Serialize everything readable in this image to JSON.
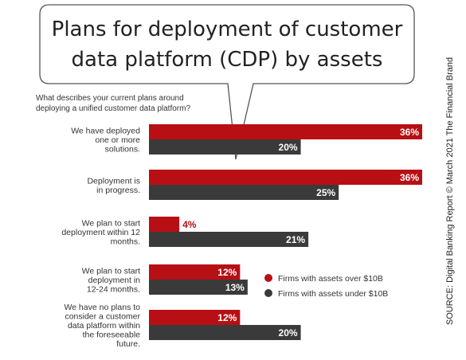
{
  "title_lines": [
    "Plans for deployment of customer",
    "data platform (CDP) by assets"
  ],
  "question_lines": [
    "What describes your current plans around",
    "deploying a unified customer data platform?"
  ],
  "source": "SOURCE: Digital Banking Report © March 2021 The Financial Brand",
  "colors": {
    "over": "#b80f14",
    "under": "#3a3a3a"
  },
  "chart_data": {
    "type": "bar",
    "orientation": "horizontal",
    "categories": [
      "We have deployed one or more solutions.",
      "Deployment is in progress.",
      "We plan to start deployment within 12 months.",
      "We plan to start deployment in 12-24 months.",
      "We have no plans to consider a customer data platform within the foreseeable future."
    ],
    "category_lines": [
      [
        "We have deployed",
        "one or more",
        "solutions."
      ],
      [
        "Deployment is",
        "in progress."
      ],
      [
        "We plan to start",
        "deployment within 12",
        "months."
      ],
      [
        "We plan to start",
        "deployment in",
        "12-24 months."
      ],
      [
        "We have no plans to",
        "consider a customer",
        "data platform within",
        "the foreseeable",
        "future."
      ]
    ],
    "series": [
      {
        "name": "Firms with assets over $10B",
        "values": [
          36,
          36,
          4,
          12,
          12
        ],
        "labels": [
          "36%",
          "36%",
          "4%",
          "12%",
          "12%"
        ]
      },
      {
        "name": "Firms with assets under $10B",
        "values": [
          20,
          25,
          21,
          13,
          20
        ],
        "labels": [
          "20%",
          "25%",
          "21%",
          "13%",
          "20%"
        ]
      }
    ],
    "xlim": [
      0,
      36
    ],
    "grid": false,
    "legend_position": "right"
  }
}
